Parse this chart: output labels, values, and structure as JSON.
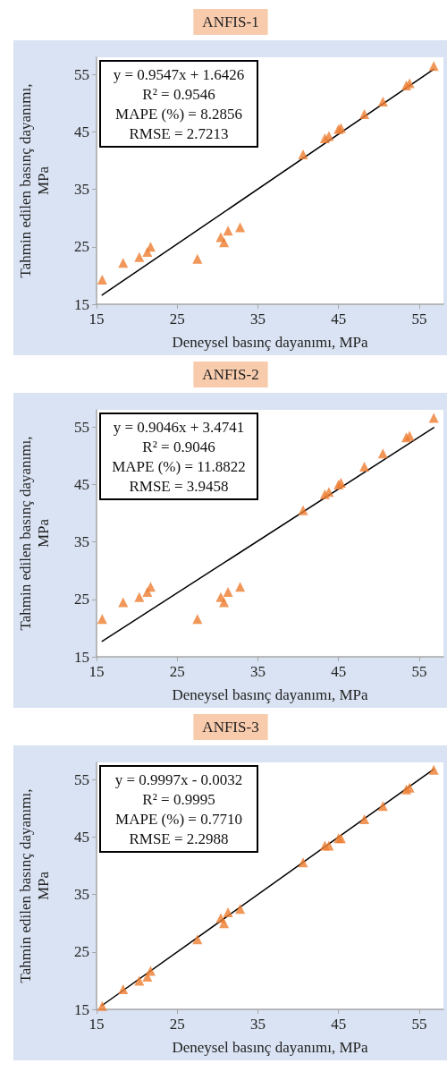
{
  "chart_data": [
    {
      "type": "scatter",
      "title": "ANFIS-1",
      "xlabel": "Deneysel basınç dayanımı, MPa",
      "ylabel": "Tahmin edilen basınç dayanımı, MPa",
      "annotations": [
        "y = 0.9547x + 1.6426",
        "R² = 0.9546",
        "MAPE (%) = 8.2856",
        "RMSE = 2.7213"
      ],
      "xlim": [
        15,
        58
      ],
      "ylim": [
        15,
        58
      ],
      "xticks": [
        15,
        25,
        35,
        45,
        55
      ],
      "yticks": [
        15,
        25,
        35,
        45,
        55
      ],
      "marker": "triangle",
      "series": [
        {
          "color": "#ed7d31",
          "x": [
            15.7,
            18.3,
            20.3,
            21.3,
            21.7,
            27.5,
            30.4,
            30.8,
            31.3,
            32.8,
            40.6,
            43.3,
            43.8,
            45.0,
            45.3,
            48.2,
            50.5,
            53.4,
            53.8,
            56.8
          ],
          "values": [
            19.3,
            22.2,
            23.2,
            24.1,
            25.0,
            22.9,
            26.7,
            25.8,
            27.8,
            28.4,
            41.1,
            43.9,
            44.3,
            45.5,
            45.7,
            48.1,
            50.3,
            53.1,
            53.5,
            56.5
          ]
        },
        {
          "type": "line",
          "color": "#000000",
          "marker": "none",
          "x": [
            15.7,
            56.8
          ],
          "values": [
            16.6,
            55.9
          ]
        }
      ]
    },
    {
      "type": "scatter",
      "title": "ANFIS-2",
      "xlabel": "Deneysel basınç dayanımı, MPa",
      "ylabel": "Tahmin edilen basınç dayanımı, MPa",
      "annotations": [
        "y = 0.9046x + 3.4741",
        "R² = 0.9046",
        "MAPE (%) = 11.8822",
        "RMSE = 3.9458"
      ],
      "xlim": [
        15,
        58
      ],
      "ylim": [
        15,
        58
      ],
      "xticks": [
        15,
        25,
        35,
        45,
        55
      ],
      "yticks": [
        15,
        25,
        35,
        45,
        55
      ],
      "marker": "triangle",
      "series": [
        {
          "color": "#ed7d31",
          "x": [
            15.7,
            18.3,
            20.3,
            21.3,
            21.7,
            27.5,
            30.4,
            30.8,
            31.3,
            32.8,
            40.6,
            43.3,
            43.8,
            45.0,
            45.3,
            48.2,
            50.5,
            53.4,
            53.8,
            56.8
          ],
          "values": [
            21.6,
            24.5,
            25.4,
            26.3,
            27.2,
            21.6,
            25.4,
            24.5,
            26.3,
            27.2,
            40.5,
            43.3,
            43.7,
            45.0,
            45.3,
            48.1,
            50.4,
            53.2,
            53.5,
            56.6
          ]
        },
        {
          "type": "line",
          "color": "#000000",
          "marker": "none",
          "x": [
            15.7,
            56.8
          ],
          "values": [
            17.7,
            54.9
          ]
        }
      ]
    },
    {
      "type": "scatter",
      "title": "ANFIS-3",
      "xlabel": "Deneysel basınç dayanımı, MPa",
      "ylabel": "Tahmin edilen basınç dayanımı, MPa",
      "annotations": [
        "y = 0.9997x - 0.0032",
        "R² = 0.9995",
        "MAPE (%) = 0.7710",
        "RMSE = 2.2988"
      ],
      "xlim": [
        15,
        58
      ],
      "ylim": [
        15,
        58
      ],
      "xticks": [
        15,
        25,
        35,
        45,
        55
      ],
      "yticks": [
        15,
        25,
        35,
        45,
        55
      ],
      "marker": "triangle",
      "series": [
        {
          "color": "#ed7d31",
          "x": [
            15.7,
            18.3,
            20.3,
            21.3,
            21.7,
            27.5,
            30.4,
            30.8,
            31.3,
            32.8,
            40.6,
            43.3,
            43.8,
            45.0,
            45.3,
            48.2,
            50.5,
            53.4,
            53.8,
            56.8
          ],
          "values": [
            15.6,
            18.5,
            20.0,
            20.7,
            21.7,
            27.2,
            30.9,
            30.0,
            31.9,
            32.5,
            40.6,
            43.5,
            43.5,
            44.8,
            44.8,
            48.1,
            50.4,
            53.3,
            53.6,
            56.7
          ]
        },
        {
          "type": "line",
          "color": "#000000",
          "marker": "none",
          "x": [
            15.7,
            56.8
          ],
          "values": [
            15.7,
            56.8
          ]
        }
      ]
    }
  ]
}
